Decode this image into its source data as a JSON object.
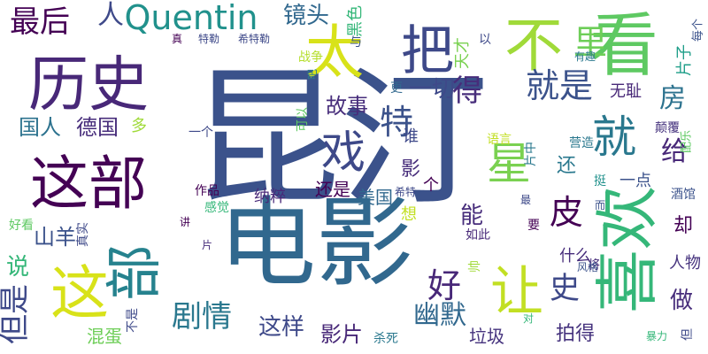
{
  "word_cloud": {
    "background": "#ffffff",
    "palette": [
      "#440154",
      "#3b528b",
      "#21918c",
      "#5ec962",
      "#fde725"
    ],
    "words": [
      {
        "text": "昆汀",
        "color": "#3b528b"
      },
      {
        "text": "电影",
        "color": "#31688e"
      },
      {
        "text": "历史",
        "color": "#482878"
      },
      {
        "text": "看",
        "color": "#5ec962"
      },
      {
        "text": "不",
        "color": "#a0da39"
      },
      {
        "text": "太",
        "color": "#d8e219"
      },
      {
        "text": "把",
        "color": "#3e4989"
      },
      {
        "text": "这部",
        "color": "#440154"
      },
      {
        "text": "喜欢",
        "color": "#35b779"
      },
      {
        "text": "这",
        "color": "#d8e219"
      },
      {
        "text": "部",
        "color": "#26828e"
      },
      {
        "text": "戏",
        "color": "#3e4989"
      },
      {
        "text": "就",
        "color": "#2a788e"
      },
      {
        "text": "让",
        "color": "#c2df23"
      },
      {
        "text": "星",
        "color": "#7ad151"
      },
      {
        "text": "Quentin",
        "color": "#21918c"
      },
      {
        "text": "最后",
        "color": "#440154"
      },
      {
        "text": "人",
        "color": "#3e4989"
      },
      {
        "text": "镜头",
        "color": "#31688e"
      },
      {
        "text": "里",
        "color": "#6ece58"
      },
      {
        "text": "就是",
        "color": "#3b528b"
      },
      {
        "text": "得",
        "color": "#472d7b"
      },
      {
        "text": "特",
        "color": "#3b528b"
      },
      {
        "text": "一切",
        "color": "#3e4989"
      },
      {
        "text": "故事",
        "color": "#472d7b"
      },
      {
        "text": "房",
        "color": "#2c728e"
      },
      {
        "text": "给",
        "color": "#482878"
      },
      {
        "text": "皮",
        "color": "#440154"
      },
      {
        "text": "剧情",
        "color": "#2a788e"
      },
      {
        "text": "好",
        "color": "#482878"
      },
      {
        "text": "幽默",
        "color": "#31688e"
      },
      {
        "text": "史",
        "color": "#3e4989"
      },
      {
        "text": "国人",
        "color": "#2c728e"
      },
      {
        "text": "德国",
        "color": "#472d7b"
      },
      {
        "text": "但是",
        "color": "#3e4989"
      },
      {
        "text": "说",
        "color": "#35b779"
      },
      {
        "text": "山羊",
        "color": "#3b528b"
      },
      {
        "text": "这样",
        "color": "#3e4989"
      },
      {
        "text": "影片",
        "color": "#482878"
      },
      {
        "text": "拍得",
        "color": "#46337e"
      },
      {
        "text": "做",
        "color": "#472d7b"
      },
      {
        "text": "能",
        "color": "#472d7b"
      },
      {
        "text": "却",
        "color": "#440154"
      },
      {
        "text": "还",
        "color": "#2a788e"
      },
      {
        "text": "影",
        "color": "#472d7b"
      },
      {
        "text": "美国",
        "color": "#31688e"
      },
      {
        "text": "还是",
        "color": "#440154"
      },
      {
        "text": "混蛋",
        "color": "#6ece58"
      },
      {
        "text": "垃圾",
        "color": "#46337e"
      },
      {
        "text": "什么",
        "color": "#472d7b"
      },
      {
        "text": "人物",
        "color": "#46337e"
      },
      {
        "text": "黑色",
        "color": "#35b779"
      },
      {
        "text": "与",
        "color": "#3b528b"
      },
      {
        "text": "天才",
        "color": "#7ad151"
      },
      {
        "text": "以",
        "color": "#3e4989"
      },
      {
        "text": "无耻",
        "color": "#482878"
      },
      {
        "text": "更",
        "color": "#31688e"
      },
      {
        "text": "颠覆",
        "color": "#46337e"
      },
      {
        "text": "片子",
        "color": "#1f9e89"
      },
      {
        "text": "每个",
        "color": "#3b528b"
      },
      {
        "text": "有趣",
        "color": "#2a788e"
      },
      {
        "text": "配乐",
        "color": "#5ec962"
      },
      {
        "text": "营造",
        "color": "#2a788e"
      },
      {
        "text": "真",
        "color": "#440154"
      },
      {
        "text": "特勒",
        "color": "#3e4989"
      },
      {
        "text": "希特勒",
        "color": "#3e4989"
      },
      {
        "text": "战争",
        "color": "#b5de2b"
      },
      {
        "text": "吧",
        "color": "#2a788e"
      },
      {
        "text": "可以",
        "color": "#5ec962"
      },
      {
        "text": "多",
        "color": "#a0da39"
      },
      {
        "text": "一个",
        "color": "#3e4989"
      },
      {
        "text": "作品",
        "color": "#440154"
      },
      {
        "text": "纳粹",
        "color": "#482878"
      },
      {
        "text": "谁",
        "color": "#3e4989"
      },
      {
        "text": "语言",
        "color": "#c2df23"
      },
      {
        "text": "片中",
        "color": "#2a788e"
      },
      {
        "text": "挺",
        "color": "#21918c"
      },
      {
        "text": "一点",
        "color": "#3b528b"
      },
      {
        "text": "酒馆",
        "color": "#3b528b"
      },
      {
        "text": "感觉",
        "color": "#35b779"
      },
      {
        "text": "想",
        "color": "#c2df23"
      },
      {
        "text": "希特",
        "color": "#3e4989"
      },
      {
        "text": "个",
        "color": "#440154"
      },
      {
        "text": "而",
        "color": "#3b528b"
      },
      {
        "text": "最",
        "color": "#3e4989"
      },
      {
        "text": "要",
        "color": "#440154"
      },
      {
        "text": "讲",
        "color": "#440154"
      },
      {
        "text": "真实",
        "color": "#3e4989"
      },
      {
        "text": "片",
        "color": "#472d7b"
      },
      {
        "text": "好看",
        "color": "#5ec962"
      },
      {
        "text": "如此",
        "color": "#482878"
      },
      {
        "text": "帅",
        "color": "#a0da39"
      },
      {
        "text": "将",
        "color": "#472d7b"
      },
      {
        "text": "风格",
        "color": "#3b528b"
      },
      {
        "text": "不是",
        "color": "#3e4989"
      },
      {
        "text": "杀死",
        "color": "#2a788e"
      },
      {
        "text": "对",
        "color": "#35b779"
      },
      {
        "text": "暴力",
        "color": "#35b779"
      },
      {
        "text": "但",
        "color": "#3e4989"
      }
    ]
  }
}
